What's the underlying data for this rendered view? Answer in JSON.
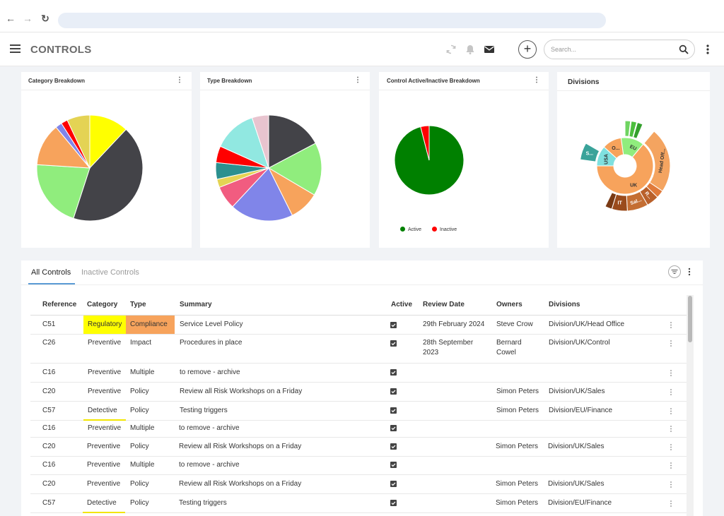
{
  "browser": {
    "back_glyph": "←",
    "forward_glyph": "→",
    "reload_glyph": "↻"
  },
  "header": {
    "title": "CONTROLS",
    "add_glyph": "+",
    "search_placeholder": "Search..."
  },
  "cards": {
    "category": {
      "title": "Category Breakdown"
    },
    "type": {
      "title": "Type Breakdown"
    },
    "active": {
      "title": "Control Active/Inactive Breakdown"
    },
    "divisions": {
      "title": "Divisions"
    }
  },
  "chart_data": [
    {
      "type": "pie",
      "title": "Category Breakdown",
      "values": [
        12,
        43,
        21,
        13,
        2,
        2,
        7
      ],
      "colors": [
        "#ffff00",
        "#434348",
        "#90ed7d",
        "#f7a35c",
        "#8085e9",
        "#ff0000",
        "#e4d354"
      ]
    },
    {
      "type": "pie",
      "title": "Type Breakdown",
      "values": [
        17,
        16,
        9,
        19,
        7,
        2.5,
        5,
        5,
        13,
        5
      ],
      "colors": [
        "#434348",
        "#90ed7d",
        "#f7a35c",
        "#8085e9",
        "#f15c80",
        "#e4d354",
        "#2b908f",
        "#ff0000",
        "#91e8e1",
        "#e8c4cf"
      ]
    },
    {
      "type": "pie",
      "title": "Control Active/Inactive Breakdown",
      "categories": [
        "Active",
        "Inactive"
      ],
      "values": [
        96,
        4
      ],
      "colors": [
        "#008000",
        "#ff0000"
      ],
      "legend": "bottom-left"
    },
    {
      "type": "sunburst",
      "title": "Divisions",
      "labels": [
        "EU",
        "O...",
        "USA",
        "S...",
        "Head Off...",
        "UK",
        "IT",
        "Sal...",
        "R..."
      ]
    }
  ],
  "tabs": [
    "All Controls",
    "Inactive Controls"
  ],
  "table": {
    "columns": [
      "Reference",
      "Category",
      "Type",
      "Summary",
      "Active",
      "Review Date",
      "Owners",
      "Divisions"
    ],
    "rows": [
      {
        "ref": "C51",
        "category": "Regulatory",
        "type": "Compliance",
        "summary": "Service Level Policy",
        "review_date": "29th February 2024",
        "owners": "Steve Crow",
        "divisions": "Division/UK/Head Office"
      },
      {
        "ref": "C26",
        "category": "Preventive",
        "type": "Impact",
        "summary": "Procedures in place",
        "review_date_1": "28th September",
        "review_date_2": "2023",
        "owners_1": "Bernard",
        "owners_2": "Cowel",
        "divisions": "Division/UK/Control"
      },
      {
        "ref": "C16",
        "category": "Preventive",
        "type": "Multiple",
        "summary": "to remove - archive",
        "review_date": "",
        "owners": "",
        "divisions": ""
      },
      {
        "ref": "C20",
        "category": "Preventive",
        "type": "Policy",
        "summary": "Review all Risk Workshops on a Friday",
        "review_date": "",
        "owners": "Simon Peters",
        "divisions": "Division/UK/Sales"
      },
      {
        "ref": "C57",
        "category": "Detective",
        "type": "Policy",
        "summary": "Testing triggers",
        "review_date": "",
        "owners": "Simon Peters",
        "divisions": "Division/EU/Finance"
      },
      {
        "ref": "C16",
        "category": "Preventive",
        "type": "Multiple",
        "summary": "to remove - archive",
        "review_date": "",
        "owners": "",
        "divisions": ""
      },
      {
        "ref": "C20",
        "category": "Preventive",
        "type": "Policy",
        "summary": "Review all Risk Workshops on a Friday",
        "review_date": "",
        "owners": "Simon Peters",
        "divisions": "Division/UK/Sales"
      },
      {
        "ref": "C16",
        "category": "Preventive",
        "type": "Multiple",
        "summary": "to remove - archive",
        "review_date": "",
        "owners": "",
        "divisions": ""
      },
      {
        "ref": "C20",
        "category": "Preventive",
        "type": "Policy",
        "summary": "Review all Risk Workshops on a Friday",
        "review_date": "",
        "owners": "Simon Peters",
        "divisions": "Division/UK/Sales"
      },
      {
        "ref": "C57",
        "category": "Detective",
        "type": "Policy",
        "summary": "Testing triggers",
        "review_date": "",
        "owners": "Simon Peters",
        "divisions": "Division/EU/Finance"
      }
    ]
  },
  "colors": {
    "regulatory_highlight": "#ffff00",
    "compliance_highlight": "#f7a35c",
    "detective_underline": "#f2e500",
    "tab_accent": "#5b9bd5"
  },
  "icons": [
    "hamburger-icon",
    "sync-icon",
    "bell-icon",
    "mail-icon",
    "plus-icon",
    "search-icon",
    "kebab-icon",
    "filter-icon",
    "checkbox-checked-icon"
  ]
}
